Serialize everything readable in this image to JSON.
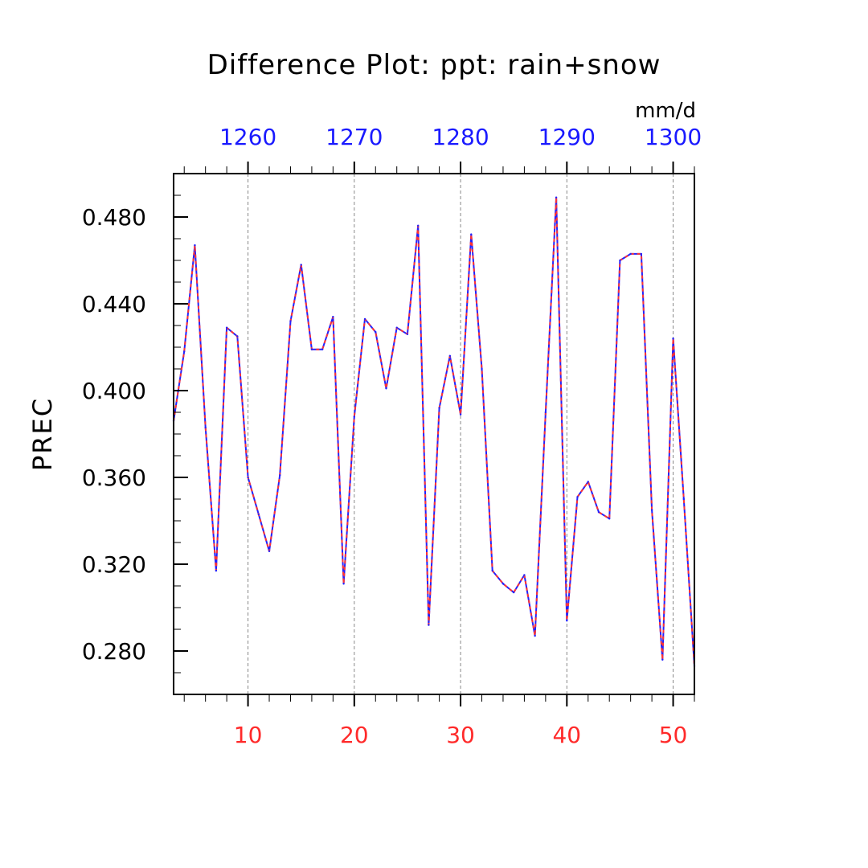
{
  "chart_data": {
    "type": "line",
    "title": "Difference Plot: ppt: rain+snow",
    "units": "mm/d",
    "ylabel": "PREC",
    "ylim": [
      0.26,
      0.5
    ],
    "yticks": [
      0.28,
      0.32,
      0.36,
      0.4,
      0.44,
      0.48
    ],
    "ytick_labels": [
      "0.280",
      "0.320",
      "0.360",
      "0.400",
      "0.440",
      "0.480"
    ],
    "xlim_bottom": [
      3,
      52
    ],
    "xticks_bottom": [
      10,
      20,
      30,
      40,
      50
    ],
    "xtick_labels_bottom": [
      "10",
      "20",
      "30",
      "40",
      "50"
    ],
    "xlim_top": [
      1253,
      1302
    ],
    "xticks_top": [
      1260,
      1270,
      1280,
      1290,
      1300
    ],
    "xtick_labels_top": [
      "1260",
      "1270",
      "1280",
      "1290",
      "1300"
    ],
    "grid": "vertical dashed",
    "series": [
      {
        "color": "#2222ff",
        "dash_color": "#ff3333",
        "x": [
          3,
          4,
          5,
          6,
          7,
          8,
          9,
          10,
          11,
          12,
          13,
          14,
          15,
          16,
          17,
          18,
          19,
          20,
          21,
          22,
          23,
          24,
          25,
          26,
          27,
          28,
          29,
          30,
          31,
          32,
          33,
          34,
          35,
          36,
          37,
          38,
          39,
          40,
          41,
          42,
          43,
          44,
          45,
          46,
          47,
          48,
          49,
          50,
          51,
          52
        ],
        "values": [
          0.386,
          0.418,
          0.467,
          0.383,
          0.317,
          0.429,
          0.425,
          0.36,
          0.343,
          0.326,
          0.361,
          0.432,
          0.458,
          0.419,
          0.419,
          0.434,
          0.311,
          0.388,
          0.433,
          0.427,
          0.401,
          0.429,
          0.426,
          0.476,
          0.292,
          0.392,
          0.416,
          0.389,
          0.472,
          0.41,
          0.317,
          0.311,
          0.307,
          0.315,
          0.287,
          0.39,
          0.489,
          0.294,
          0.351,
          0.358,
          0.344,
          0.341,
          0.46,
          0.463,
          0.463,
          0.345,
          0.276,
          0.424,
          0.35,
          0.273
        ]
      }
    ]
  }
}
